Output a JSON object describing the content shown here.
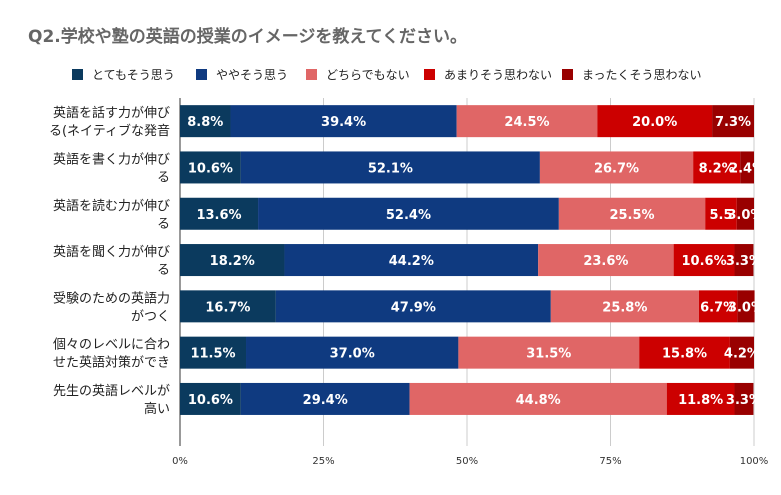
{
  "chart_data": {
    "type": "bar",
    "orientation": "horizontal",
    "stacked": "percent",
    "title": "Q2.学校や塾の英語の授業のイメージを教えてください。",
    "categories": [
      [
        "英語を話す力が伸び",
        "る(ネイティブな発音"
      ],
      [
        "英語を書く力が伸び",
        "る"
      ],
      [
        "英語を読む力が伸び",
        "る"
      ],
      [
        "英語を聞く力が伸び",
        "る"
      ],
      [
        "受験のための英語力",
        "がつく"
      ],
      [
        "個々のレベルに合わ",
        "せた英語対策ができ"
      ],
      [
        "先生の英語レベルが",
        "高い"
      ]
    ],
    "series": [
      {
        "name": "とてもそう思う",
        "color": "#0b3a5e",
        "values": [
          8.8,
          10.6,
          13.6,
          18.2,
          16.7,
          11.5,
          10.6
        ],
        "labels": [
          "8.8%",
          "10.6%",
          "13.6%",
          "18.2%",
          "16.7%",
          "11.5%",
          "10.6%"
        ]
      },
      {
        "name": "ややそう思う",
        "color": "#0f3a80",
        "values": [
          39.4,
          52.1,
          52.4,
          44.2,
          47.9,
          37.0,
          29.4
        ],
        "labels": [
          "39.4%",
          "52.1%",
          "52.4%",
          "44.2%",
          "47.9%",
          "37.0%",
          "29.4%"
        ]
      },
      {
        "name": "どちらでもない",
        "color": "#e06666",
        "values": [
          24.5,
          26.7,
          25.5,
          23.6,
          25.8,
          31.5,
          44.8
        ],
        "labels": [
          "24.5%",
          "26.7%",
          "25.5%",
          "23.6%",
          "25.8%",
          "31.5%",
          "44.8%"
        ]
      },
      {
        "name": "あまりそう思わない",
        "color": "#cc0000",
        "values": [
          20.0,
          8.2,
          5.5,
          10.6,
          6.7,
          15.8,
          11.8
        ],
        "labels": [
          "20.0%",
          "8.2%",
          "5.5",
          "10.6%",
          "6.7%",
          "15.8%",
          "11.8%"
        ]
      },
      {
        "name": "まったくそう思わない",
        "color": "#990000",
        "values": [
          7.3,
          2.4,
          3.0,
          3.3,
          3.0,
          4.2,
          3.3
        ],
        "labels": [
          "7.3%",
          "2.4%",
          "3.0%",
          "3.3%",
          "3.0%",
          "4.2%",
          "3.3%"
        ]
      }
    ],
    "xlim": [
      0,
      100
    ],
    "ticks": [
      "0%",
      "25%",
      "50%",
      "75%",
      "100%"
    ],
    "grid": true,
    "legend": "top"
  }
}
